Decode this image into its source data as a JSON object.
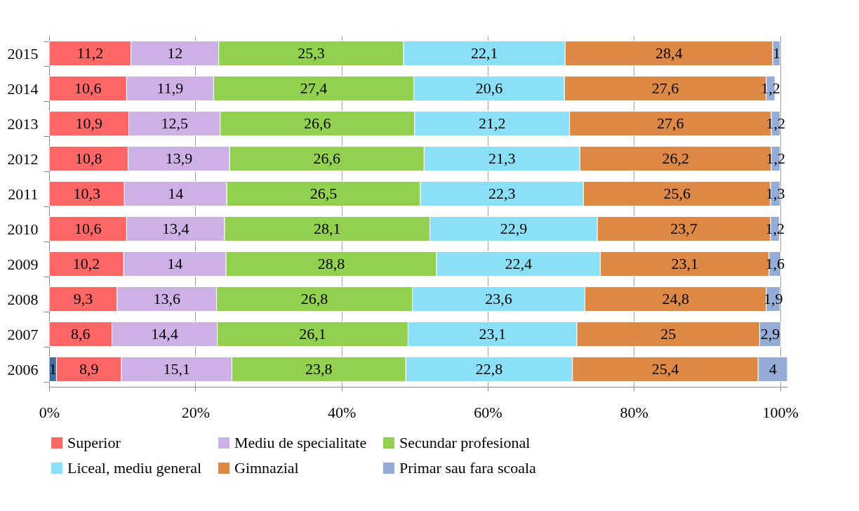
{
  "chart_data": {
    "type": "bar",
    "orientation": "horizontal",
    "stacked": true,
    "legend": "bottom",
    "grid": "x",
    "categories": [
      "2015",
      "2014",
      "2013",
      "2012",
      "2011",
      "2010",
      "2009",
      "2008",
      "2007",
      "2006"
    ],
    "xlim": [
      0,
      101
    ],
    "xticks": [
      {
        "value": 0,
        "label": "0%"
      },
      {
        "value": 20,
        "label": "20%"
      },
      {
        "value": 40,
        "label": "40%"
      },
      {
        "value": 60,
        "label": "60%"
      },
      {
        "value": 80,
        "label": "80%"
      },
      {
        "value": 100,
        "label": "100%"
      }
    ],
    "series": [
      {
        "color": "#3f6fa0",
        "values": [
          null,
          null,
          null,
          null,
          null,
          null,
          null,
          null,
          null,
          1
        ],
        "value_labels": [
          null,
          null,
          null,
          null,
          null,
          null,
          null,
          null,
          null,
          "1"
        ]
      },
      {
        "name": "Superior",
        "color": "#ff6666",
        "values": [
          11.2,
          10.6,
          10.9,
          10.8,
          10.3,
          10.6,
          10.2,
          9.3,
          8.6,
          8.9
        ],
        "value_labels": [
          "11,2",
          "10,6",
          "10,9",
          "10,8",
          "10,3",
          "10,6",
          "10,2",
          "9,3",
          "8,6",
          "8,9"
        ]
      },
      {
        "name": "Mediu de specialitate",
        "color": "#cdb0e6",
        "values": [
          12,
          11.9,
          12.5,
          13.9,
          14,
          13.4,
          14,
          13.6,
          14.4,
          15.1
        ],
        "value_labels": [
          "12",
          "11,9",
          "12,5",
          "13,9",
          "14",
          "13,4",
          "14",
          "13,6",
          "14,4",
          "15,1"
        ]
      },
      {
        "name": "Secundar profesional",
        "color": "#92d050",
        "values": [
          25.3,
          27.4,
          26.6,
          26.6,
          26.5,
          28.1,
          28.8,
          26.8,
          26.1,
          23.8
        ],
        "value_labels": [
          "25,3",
          "27,4",
          "26,6",
          "26,6",
          "26,5",
          "28,1",
          "28,8",
          "26,8",
          "26,1",
          "23,8"
        ]
      },
      {
        "name": "Liceal, mediu general",
        "color": "#8be0f8",
        "values": [
          22.1,
          20.6,
          21.2,
          21.3,
          22.3,
          22.9,
          22.4,
          23.6,
          23.1,
          22.8
        ],
        "value_labels": [
          "22,1",
          "20,6",
          "21,2",
          "21,3",
          "22,3",
          "22,9",
          "22,4",
          "23,6",
          "23,1",
          "22,8"
        ]
      },
      {
        "name": "Gimnazial",
        "color": "#dd8844",
        "values": [
          28.4,
          27.6,
          27.6,
          26.2,
          25.6,
          23.7,
          23.1,
          24.8,
          25,
          25.4
        ],
        "value_labels": [
          "28,4",
          "27,6",
          "27,6",
          "26,2",
          "25,6",
          "23,7",
          "23,1",
          "24,8",
          "25",
          "25,4"
        ]
      },
      {
        "name": "Primar sau fara scoala",
        "color": "#95acd6",
        "values": [
          1,
          1.2,
          1.2,
          1.2,
          1.3,
          1.2,
          1.6,
          1.9,
          2.9,
          4
        ],
        "value_labels": [
          "1",
          "1,2",
          "1,2",
          "1,2",
          "1,3",
          "1,2",
          "1,6",
          "1,9",
          "2,9",
          "4"
        ]
      }
    ]
  }
}
